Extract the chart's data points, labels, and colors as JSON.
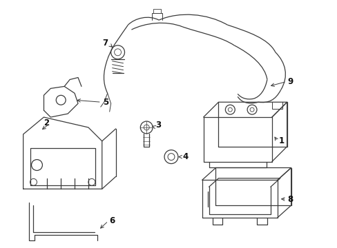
{
  "bg_color": "#ffffff",
  "line_color": "#3a3a3a",
  "label_color": "#111111",
  "fig_w": 4.89,
  "fig_h": 3.6,
  "dpi": 100,
  "lw": 0.9
}
